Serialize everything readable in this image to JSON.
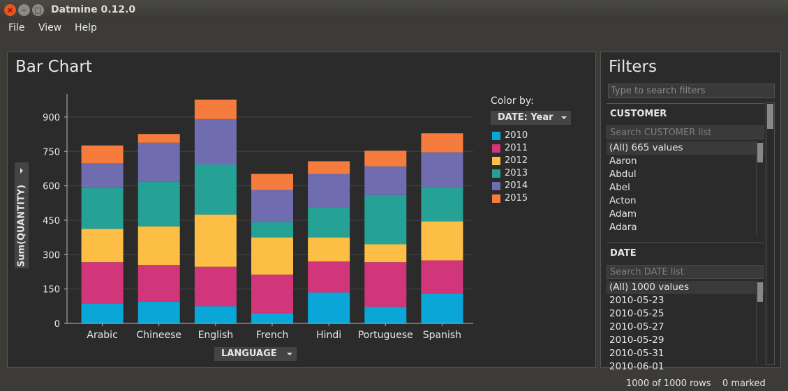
{
  "window": {
    "title": "Datmine 0.12.0"
  },
  "menu": [
    "File",
    "View",
    "Help"
  ],
  "chart_panel": {
    "title": "Bar Chart",
    "y_axis_button": "Sum(QUANTITY)",
    "x_axis_button": "LANGUAGE",
    "color_by_label": "Color by:",
    "color_by_button": "DATE: Year"
  },
  "chart_data": {
    "type": "bar",
    "stacked": true,
    "categories": [
      "Arabic",
      "Chineese",
      "English",
      "French",
      "Hindi",
      "Portuguese",
      "Spanish"
    ],
    "series": [
      {
        "name": "2010",
        "color": "#0aa6d8",
        "values": [
          85,
          95,
          75,
          45,
          135,
          72,
          130
        ]
      },
      {
        "name": "2011",
        "color": "#d2367a",
        "values": [
          182,
          160,
          172,
          168,
          135,
          195,
          145
        ]
      },
      {
        "name": "2012",
        "color": "#fdbe45",
        "values": [
          145,
          168,
          228,
          162,
          105,
          78,
          170
        ]
      },
      {
        "name": "2013",
        "color": "#25a195",
        "values": [
          178,
          195,
          218,
          67,
          132,
          215,
          148
        ]
      },
      {
        "name": "2014",
        "color": "#6f6daf",
        "values": [
          108,
          170,
          198,
          140,
          145,
          125,
          153
        ]
      },
      {
        "name": "2015",
        "color": "#f57c3c",
        "values": [
          78,
          38,
          85,
          70,
          55,
          68,
          83
        ]
      }
    ],
    "ylabel": "Sum(QUANTITY)",
    "xlabel": "LANGUAGE",
    "yticks": [
      0,
      150,
      300,
      450,
      600,
      750,
      900
    ],
    "ylim": [
      0,
      1000
    ],
    "grid": true,
    "legend": "right"
  },
  "filters": {
    "title": "Filters",
    "search_placeholder": "Type to search filters",
    "customer": {
      "title": "CUSTOMER",
      "search_placeholder": "Search CUSTOMER list",
      "items": [
        "(All) 665 values",
        "Aaron",
        "Abdul",
        "Abel",
        "Acton",
        "Adam",
        "Adara"
      ]
    },
    "date": {
      "title": "DATE",
      "search_placeholder": "Search DATE list",
      "items": [
        "(All) 1000 values",
        "2010-05-23",
        "2010-05-25",
        "2010-05-27",
        "2010-05-29",
        "2010-05-31",
        "2010-06-01"
      ]
    }
  },
  "status": {
    "rows": "1000 of 1000 rows",
    "marked": "0 marked"
  }
}
